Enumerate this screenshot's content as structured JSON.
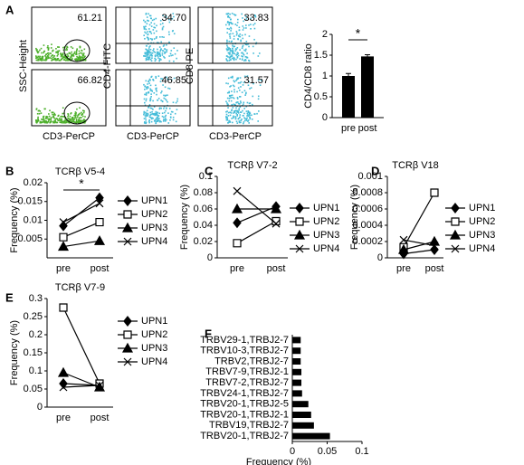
{
  "panels": [
    "A",
    "B",
    "C",
    "D",
    "E",
    "F"
  ],
  "flow": {
    "y_labels": [
      "SSC-Height",
      "CD4-FITC",
      "CD8-PE"
    ],
    "x_labels": [
      "CD3-PerCP",
      "CD3-PerCP",
      "CD3-PerCP"
    ],
    "values": [
      [
        "61.21",
        "34.70",
        "33.83"
      ],
      [
        "66.82",
        "46.85",
        "31.57"
      ]
    ]
  },
  "chart_data": [
    {
      "type": "bar",
      "ylabel": "CD4/CD8 ratio",
      "categories": [
        "pre",
        "post"
      ],
      "values": [
        1.0,
        1.47
      ],
      "errors": [
        0.06,
        0.04
      ],
      "color": "#000000",
      "ylim": [
        0,
        2
      ],
      "yticks": [
        0,
        0.5,
        1,
        1.5,
        2
      ],
      "annotation": "*"
    },
    {
      "type": "line",
      "title": "TCRβ V5-4",
      "ylabel": "Frequency (%)",
      "categories": [
        "pre",
        "post"
      ],
      "ylim": [
        0,
        0.02
      ],
      "yticks": [
        0.005,
        0.01,
        0.015,
        0.02
      ],
      "annotation": "*",
      "series": [
        {
          "name": "UPN1",
          "marker": "diamond",
          "color": "#000000",
          "values": [
            0.0085,
            0.016
          ]
        },
        {
          "name": "UPN2",
          "marker": "square",
          "color": "#000000",
          "values": [
            0.0055,
            0.0095
          ]
        },
        {
          "name": "UPN3",
          "marker": "triangle",
          "color": "#000000",
          "values": [
            0.003,
            0.0045
          ]
        },
        {
          "name": "UPN4",
          "marker": "x",
          "color": "#000000",
          "values": [
            0.0095,
            0.0145
          ]
        }
      ]
    },
    {
      "type": "line",
      "title": "TCRβ V7-2",
      "ylabel": "Frequency (%)",
      "categories": [
        "pre",
        "post"
      ],
      "ylim": [
        0,
        0.1
      ],
      "yticks": [
        0,
        0.02,
        0.04,
        0.06,
        0.08,
        0.1
      ],
      "series": [
        {
          "name": "UPN1",
          "marker": "diamond",
          "color": "#000000",
          "values": [
            0.043,
            0.063
          ]
        },
        {
          "name": "UPN2",
          "marker": "square",
          "color": "#000000",
          "values": [
            0.018,
            0.045
          ]
        },
        {
          "name": "UPN3",
          "marker": "triangle",
          "color": "#000000",
          "values": [
            0.06,
            0.06
          ]
        },
        {
          "name": "UPN4",
          "marker": "x",
          "color": "#000000",
          "values": [
            0.082,
            0.042
          ]
        }
      ]
    },
    {
      "type": "line",
      "title": "TCRβ V18",
      "ylabel": "Frequency (%)",
      "categories": [
        "pre",
        "post"
      ],
      "ylim": [
        0,
        0.001
      ],
      "yticks": [
        0,
        0.0002,
        0.0004,
        0.0006,
        0.0008,
        0.001
      ],
      "series": [
        {
          "name": "UPN1",
          "marker": "diamond",
          "color": "#000000",
          "values": [
            5e-05,
            0.0001
          ]
        },
        {
          "name": "UPN2",
          "marker": "square",
          "color": "#000000",
          "values": [
            0.00013,
            0.0008
          ]
        },
        {
          "name": "UPN3",
          "marker": "triangle",
          "color": "#000000",
          "values": [
            0.0001,
            0.0002
          ]
        },
        {
          "name": "UPN4",
          "marker": "x",
          "color": "#000000",
          "values": [
            0.00022,
            0.00015
          ]
        }
      ]
    },
    {
      "type": "line",
      "title": "TCRβ V7-9",
      "ylabel": "Frequency (%)",
      "categories": [
        "pre",
        "post"
      ],
      "ylim": [
        0,
        0.3
      ],
      "yticks": [
        0,
        0.05,
        0.1,
        0.15,
        0.2,
        0.25,
        0.3
      ],
      "series": [
        {
          "name": "UPN1",
          "marker": "diamond",
          "color": "#000000",
          "values": [
            0.065,
            0.06
          ]
        },
        {
          "name": "UPN2",
          "marker": "square",
          "color": "#000000",
          "values": [
            0.275,
            0.065
          ]
        },
        {
          "name": "UPN3",
          "marker": "triangle",
          "color": "#000000",
          "values": [
            0.095,
            0.055
          ]
        },
        {
          "name": "UPN4",
          "marker": "x",
          "color": "#000000",
          "values": [
            0.055,
            0.06
          ]
        }
      ]
    },
    {
      "type": "hbar",
      "xlabel": "Frequency (%)",
      "color": "#000000",
      "xlim": [
        0,
        0.1
      ],
      "xticks": [
        0,
        0.05,
        0.1
      ],
      "categories": [
        "TRBV29-1,TRBJ2-7",
        "TRBV10-3,TRBJ2-7",
        "TRBV2,TRBJ2-7",
        "TRBV7-9,TRBJ2-1",
        "TRBV7-2,TRBJ2-7",
        "TRBV24-1,TRBJ2-7",
        "TRBV20-1,TRBJ2-5",
        "TRBV20-1,TRBJ2-1",
        "TRBV19,TRBJ2-7",
        "TRBV20-1,TRBJ2-7"
      ],
      "values": [
        0.012,
        0.012,
        0.012,
        0.013,
        0.013,
        0.014,
        0.023,
        0.027,
        0.031,
        0.054
      ]
    }
  ]
}
